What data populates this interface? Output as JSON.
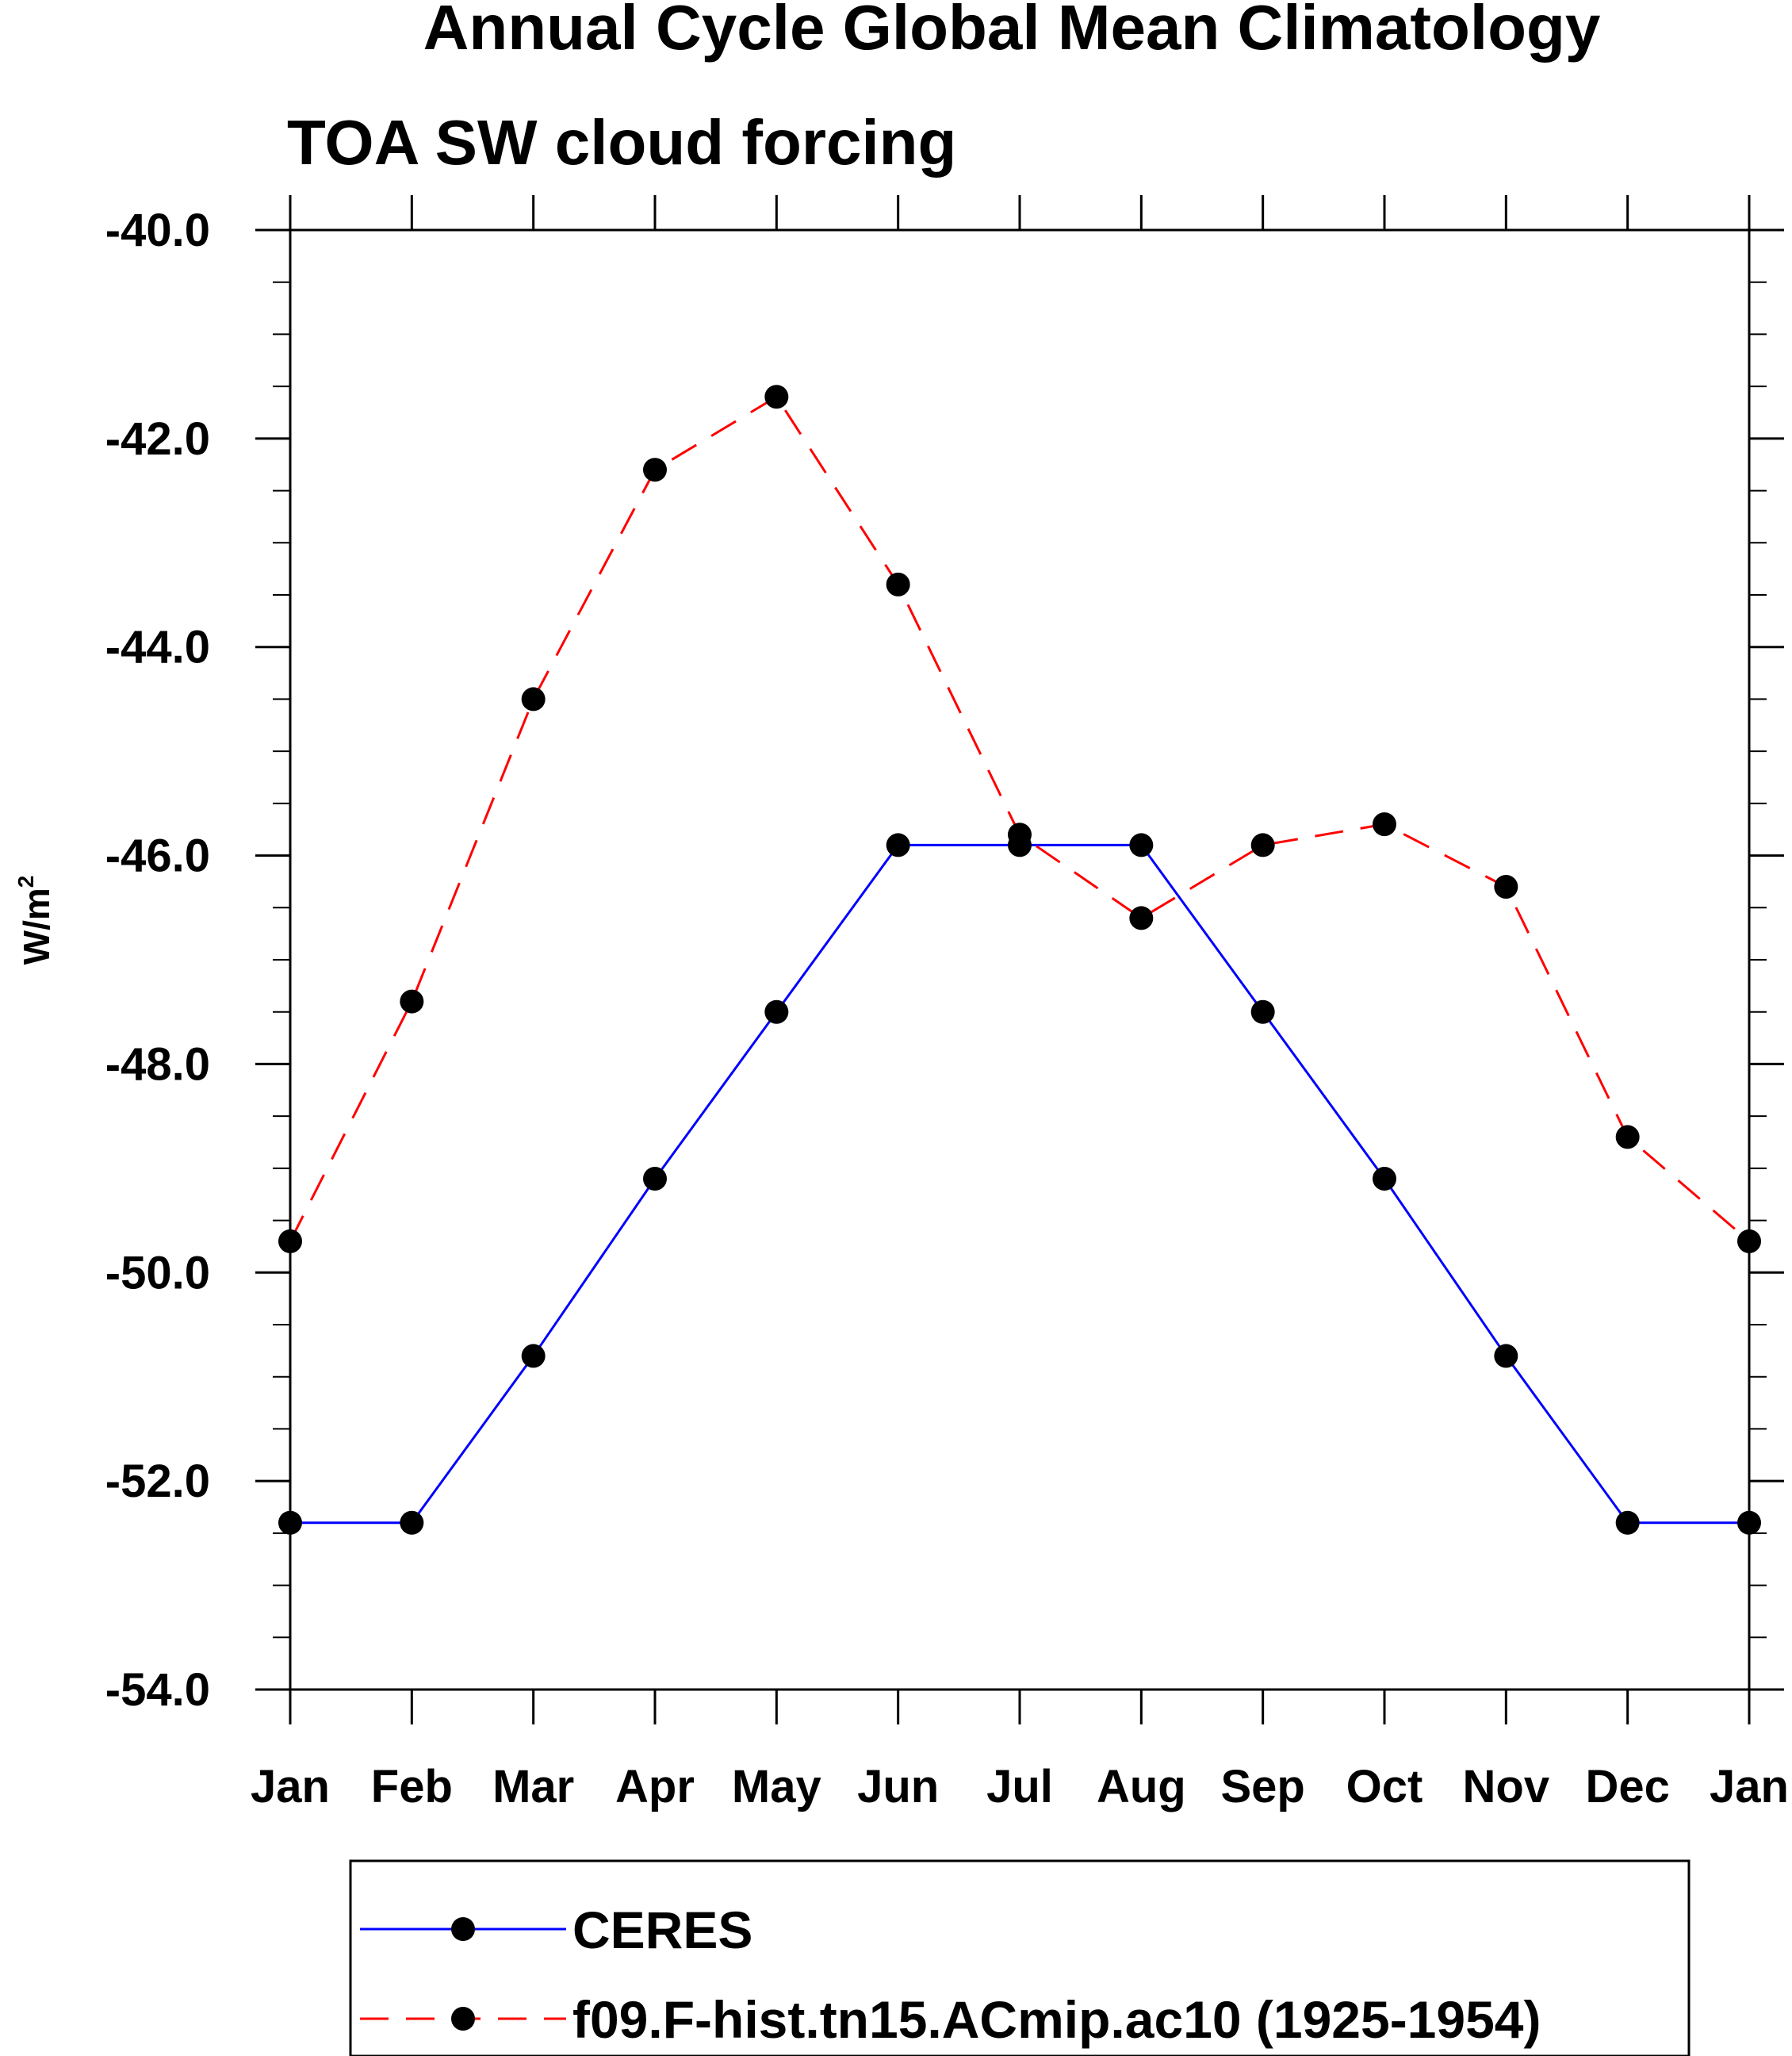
{
  "chart_data": {
    "type": "line",
    "title": "Annual Cycle Global Mean Climatology",
    "subtitle": "TOA SW cloud forcing",
    "xlabel": "",
    "ylabel_base": "W/m",
    "ylabel_sup": "2",
    "categories": [
      "Jan",
      "Feb",
      "Mar",
      "Apr",
      "May",
      "Jun",
      "Jul",
      "Aug",
      "Sep",
      "Oct",
      "Nov",
      "Dec",
      "Jan"
    ],
    "ylim": [
      -54.0,
      -40.0
    ],
    "yticks": [
      -54.0,
      -52.0,
      -50.0,
      -48.0,
      -46.0,
      -44.0,
      -42.0,
      -40.0
    ],
    "ytick_labels": [
      "-54.0",
      "-52.0",
      "-50.0",
      "-48.0",
      "-46.0",
      "-44.0",
      "-42.0",
      "-40.0"
    ],
    "grid": false,
    "legend_position": "bottom",
    "series": [
      {
        "name": "CERES",
        "color": "#0000ff",
        "dash": "solid",
        "marker": "filled-circle",
        "values": [
          -52.4,
          -52.4,
          -50.8,
          -49.1,
          -47.5,
          -45.9,
          -45.9,
          -45.9,
          -47.5,
          -49.1,
          -50.8,
          -52.4,
          -52.4
        ]
      },
      {
        "name": "f09.F-hist.tn15.ACmip.ac10 (1925-1954)",
        "color": "#ff0000",
        "dash": "dashed",
        "marker": "filled-circle",
        "values": [
          -49.7,
          -47.4,
          -44.5,
          -42.3,
          -41.6,
          -43.4,
          -45.8,
          -46.6,
          -45.9,
          -45.7,
          -46.3,
          -48.7,
          -49.7
        ]
      }
    ]
  }
}
